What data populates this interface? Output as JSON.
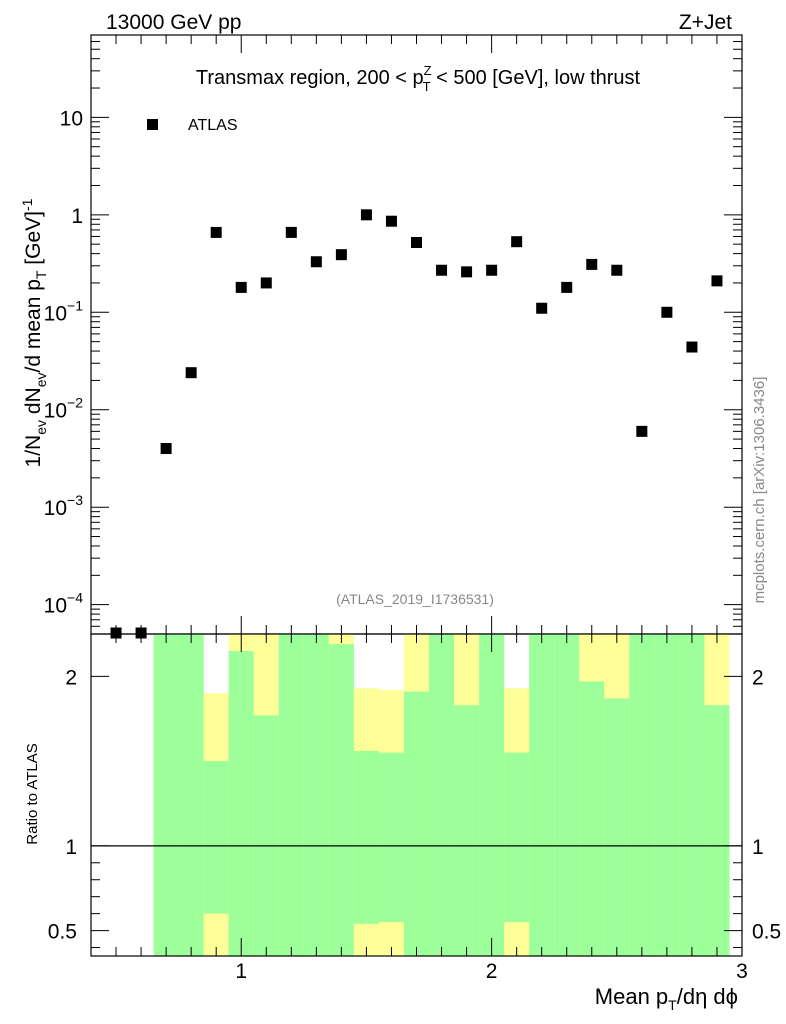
{
  "header": {
    "left": "13000 GeV pp",
    "right": "Z+Jet"
  },
  "side_label": "mcplots.cern.ch [arXiv:1306.3436]",
  "analysis_tag": "(ATLAS_2019_I1736531)",
  "chart_data": [
    {
      "type": "scatter",
      "title": {
        "before": "Transmax region, 200 < p",
        "sup": "Z",
        "sub": "T",
        "after": " < 500 [GeV], low thrust"
      },
      "yscale": "log",
      "xlim": [
        0.4,
        3.0
      ],
      "ylim": [
        5e-05,
        70
      ],
      "xticks": [
        1,
        2,
        3
      ],
      "ytick_labels": [
        {
          "value": 10,
          "base": "10",
          "exp": ""
        },
        {
          "value": 1,
          "base": "1",
          "exp": ""
        },
        {
          "value": 0.1,
          "base": "10",
          "exp": "−1"
        },
        {
          "value": 0.01,
          "base": "10",
          "exp": "−2"
        },
        {
          "value": 0.001,
          "base": "10",
          "exp": "−3"
        },
        {
          "value": 0.0001,
          "base": "10",
          "exp": "−4"
        }
      ],
      "ylabel": {
        "p1": "1/N",
        "s1": "ev",
        "p2": " dN",
        "s2": "ev",
        "p3": "/d mean p",
        "s3": "T",
        "p4": " [GeV]",
        "sup": "-1"
      },
      "legend": [
        "ATLAS"
      ],
      "series": [
        {
          "name": "ATLAS",
          "x": [
            0.5,
            0.6,
            0.7,
            0.8,
            0.9,
            1.0,
            1.1,
            1.2,
            1.3,
            1.4,
            1.5,
            1.6,
            1.7,
            1.8,
            1.9,
            2.0,
            2.1,
            2.2,
            2.3,
            2.4,
            2.5,
            2.6,
            2.7,
            2.8,
            2.9
          ],
          "y": [
            5e-05,
            5e-05,
            0.004,
            0.024,
            0.66,
            0.18,
            0.2,
            0.66,
            0.33,
            0.39,
            1.0,
            0.86,
            0.52,
            0.27,
            0.26,
            0.27,
            0.53,
            0.11,
            0.18,
            0.31,
            0.27,
            0.006,
            0.1,
            0.044,
            0.21
          ]
        }
      ]
    },
    {
      "type": "bar",
      "ylabel": "Ratio to ATLAS",
      "xlabel": {
        "p1": "Mean p",
        "s1": "T",
        "p2": "/dη dϕ"
      },
      "xlim": [
        0.4,
        3.0
      ],
      "ylim": [
        0.35,
        2.25
      ],
      "xticks": [
        1,
        2,
        3
      ],
      "yticks": [
        0.5,
        1,
        2
      ],
      "reference_line": 1,
      "colors": {
        "green": "#9cff99",
        "yellow": "#ffff99"
      },
      "bins": [
        {
          "lo": 0.65,
          "hi": 0.75,
          "green": [
            0.0,
            9.99
          ],
          "yellow": [
            0.0,
            9.99
          ]
        },
        {
          "lo": 0.75,
          "hi": 0.85,
          "green": [
            0.0,
            9.99
          ],
          "yellow": [
            0.0,
            9.99
          ]
        },
        {
          "lo": 0.85,
          "hi": 0.95,
          "green": [
            0.6,
            1.5
          ],
          "yellow": [
            0.35,
            1.9
          ]
        },
        {
          "lo": 0.95,
          "hi": 1.05,
          "green": [
            0.0,
            2.15
          ],
          "yellow": [
            0.0,
            2.5
          ]
        },
        {
          "lo": 1.05,
          "hi": 1.15,
          "green": [
            0.0,
            1.77
          ],
          "yellow": [
            0.0,
            2.5
          ]
        },
        {
          "lo": 1.15,
          "hi": 1.25,
          "green": [
            0.0,
            9.99
          ],
          "yellow": [
            0.0,
            9.99
          ]
        },
        {
          "lo": 1.25,
          "hi": 1.35,
          "green": [
            0.0,
            2.28
          ],
          "yellow": [
            0.0,
            9.99
          ]
        },
        {
          "lo": 1.35,
          "hi": 1.45,
          "green": [
            0.0,
            2.19
          ],
          "yellow": [
            0.0,
            2.5
          ]
        },
        {
          "lo": 1.45,
          "hi": 1.55,
          "green": [
            0.54,
            1.56
          ],
          "yellow": [
            0.35,
            1.93
          ]
        },
        {
          "lo": 1.55,
          "hi": 1.65,
          "green": [
            0.55,
            1.55
          ],
          "yellow": [
            0.35,
            1.92
          ]
        },
        {
          "lo": 1.65,
          "hi": 1.75,
          "green": [
            0.0,
            1.91
          ],
          "yellow": [
            0.0,
            2.5
          ]
        },
        {
          "lo": 1.75,
          "hi": 1.85,
          "green": [
            0.0,
            9.99
          ],
          "yellow": [
            0.0,
            9.99
          ]
        },
        {
          "lo": 1.85,
          "hi": 1.95,
          "green": [
            0.0,
            1.83
          ],
          "yellow": [
            0.0,
            2.5
          ]
        },
        {
          "lo": 1.95,
          "hi": 2.05,
          "green": [
            0.0,
            9.99
          ],
          "yellow": [
            0.0,
            9.99
          ]
        },
        {
          "lo": 2.05,
          "hi": 2.15,
          "green": [
            0.55,
            1.55
          ],
          "yellow": [
            0.35,
            1.93
          ]
        },
        {
          "lo": 2.15,
          "hi": 2.25,
          "green": [
            0.0,
            9.99
          ],
          "yellow": [
            0.0,
            9.99
          ]
        },
        {
          "lo": 2.25,
          "hi": 2.35,
          "green": [
            0.0,
            9.99
          ],
          "yellow": [
            0.0,
            9.99
          ]
        },
        {
          "lo": 2.35,
          "hi": 2.45,
          "green": [
            0.0,
            1.97
          ],
          "yellow": [
            0.0,
            2.5
          ]
        },
        {
          "lo": 2.45,
          "hi": 2.55,
          "green": [
            0.0,
            1.87
          ],
          "yellow": [
            0.0,
            2.5
          ]
        },
        {
          "lo": 2.55,
          "hi": 2.65,
          "green": [
            0.0,
            9.99
          ],
          "yellow": [
            0.0,
            9.99
          ]
        },
        {
          "lo": 2.65,
          "hi": 2.75,
          "green": [
            0.0,
            9.99
          ],
          "yellow": [
            0.0,
            9.99
          ]
        },
        {
          "lo": 2.75,
          "hi": 2.85,
          "green": [
            0.0,
            9.99
          ],
          "yellow": [
            0.0,
            9.99
          ]
        },
        {
          "lo": 2.85,
          "hi": 2.95,
          "green": [
            0.0,
            1.83
          ],
          "yellow": [
            0.0,
            2.5
          ]
        }
      ]
    }
  ]
}
